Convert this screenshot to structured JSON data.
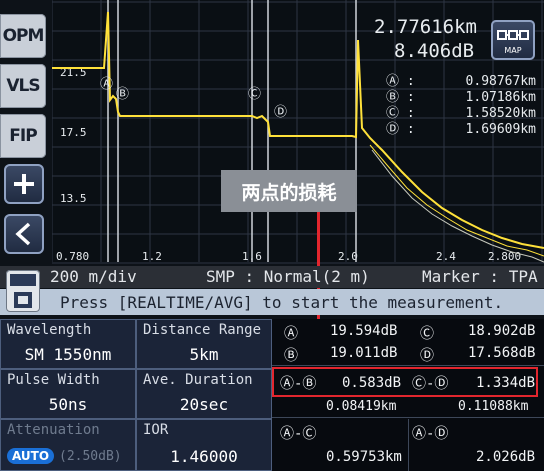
{
  "sidebar": {
    "items": [
      {
        "label": "OPM"
      },
      {
        "label": "VLS"
      },
      {
        "label": "FIP"
      },
      {
        "label": "+"
      },
      {
        "label": "<"
      }
    ]
  },
  "plot": {
    "distance_readout": "2.77616km",
    "loss_readout": "8.406dB",
    "map_label": "MAP",
    "y_ticks": [
      "21.5",
      "17.5",
      "13.5"
    ],
    "x_ticks": [
      "0.780",
      "1.2",
      "1.6",
      "2.0",
      "2.4",
      "2.800"
    ],
    "cursor_markers": [
      "A",
      "B",
      "C",
      "D"
    ],
    "cursor_positions": [
      {
        "marker": "A",
        "value": "0.98767km"
      },
      {
        "marker": "B",
        "value": "1.07186km"
      },
      {
        "marker": "C",
        "value": "1.58520km"
      },
      {
        "marker": "D",
        "value": "1.69609km"
      }
    ],
    "colors": {
      "trace": "#ffe13a",
      "cursor": "#e8ecef",
      "grid": "#2e3644"
    }
  },
  "annotation": {
    "label": "两点的损耗"
  },
  "status": {
    "scale": "200 m/div",
    "smp": "SMP : Normal(2 m)",
    "marker": "Marker : TPA",
    "message": "Press [REALTIME/AVG] to start the measurement."
  },
  "params": {
    "wavelength": {
      "label": "Wavelength",
      "value": "SM 1550nm"
    },
    "distance_range": {
      "label": "Distance Range",
      "value": "5km"
    },
    "pulse_width": {
      "label": "Pulse Width",
      "value": "50ns"
    },
    "ave_duration": {
      "label": "Ave. Duration",
      "value": "20sec"
    },
    "attenuation": {
      "label": "Attenuation",
      "mode": "AUTO",
      "value": "(2.50dB)"
    },
    "ior": {
      "label": "IOR",
      "value": "1.46000"
    }
  },
  "loss": {
    "a_marker": "A",
    "a_level": "19.594dB",
    "c_marker": "C",
    "c_level": "18.902dB",
    "b_marker": "B",
    "b_level": "19.011dB",
    "d_marker": "D",
    "d_level": "17.568dB",
    "ab_label": "A-B",
    "ab_loss": "0.583dB",
    "ab_distance": "0.08419km",
    "cd_label": "C-D",
    "cd_loss": "1.334dB",
    "cd_distance": "0.11088km",
    "ac_label": "A-C",
    "ac_distance": "0.59753km",
    "ad_label": "A-D",
    "ad_loss": "2.026dB"
  },
  "highlight_color": "#e2262e"
}
